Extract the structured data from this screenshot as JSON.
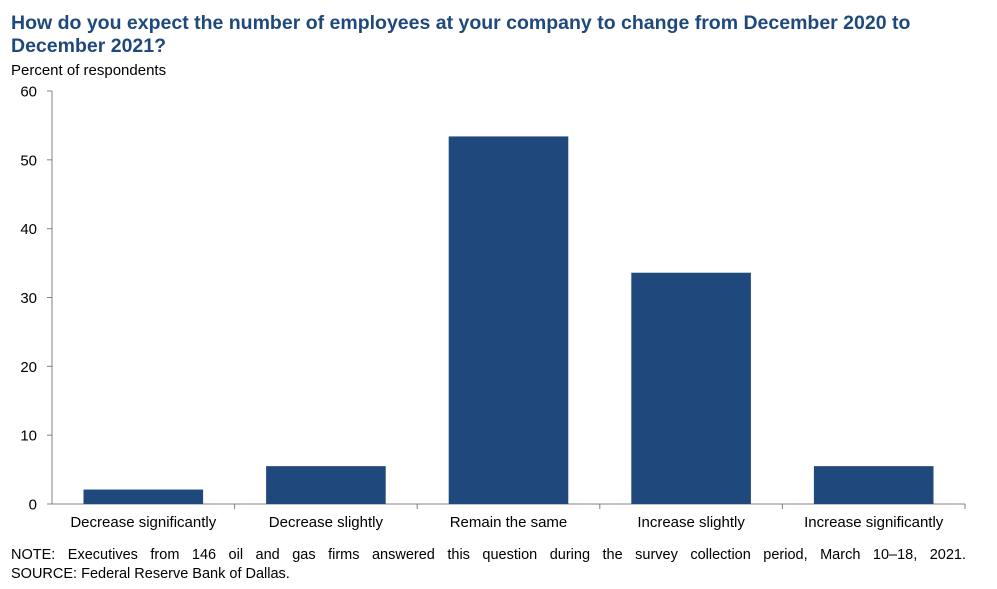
{
  "chart_data": {
    "type": "bar",
    "title": "How do you expect the number of employees at your company to change from December 2020 to December 2021?",
    "ylabel": "Percent of respondents",
    "xlabel": "",
    "categories": [
      "Decrease significantly",
      "Decrease slightly",
      "Remain the same",
      "Increase slightly",
      "Increase significantly"
    ],
    "values": [
      2.1,
      5.5,
      53.4,
      33.6,
      5.5
    ],
    "ylim": [
      0,
      60
    ],
    "yticks": [
      0,
      10,
      20,
      30,
      40,
      50,
      60
    ],
    "bar_color": "#1f497d",
    "grid": false
  },
  "notes": {
    "note": "NOTE: Executives from 146 oil and gas firms answered this question during the survey collection period, March 10–18, 2021.",
    "source": "SOURCE: Federal Reserve Bank of Dallas."
  }
}
